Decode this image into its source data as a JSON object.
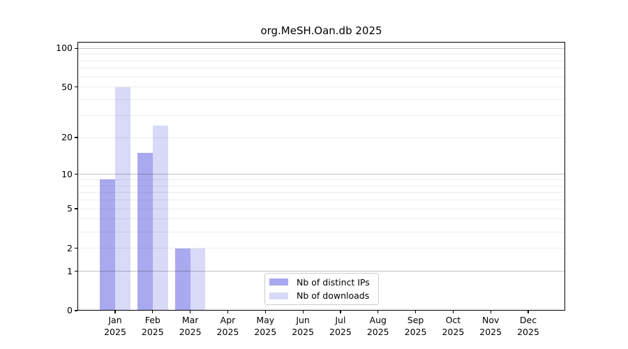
{
  "chart_data": {
    "type": "bar",
    "title": "org.MeSH.Oan.db 2025",
    "categories": [
      "Jan",
      "Feb",
      "Mar",
      "Apr",
      "May",
      "Jun",
      "Jul",
      "Aug",
      "Sep",
      "Oct",
      "Nov",
      "Dec"
    ],
    "year_label": "2025",
    "series": [
      {
        "name": "Nb of distinct IPs",
        "color": "#a9a9ef",
        "values": [
          9,
          15,
          2,
          0,
          0,
          0,
          0,
          0,
          0,
          0,
          0,
          0
        ]
      },
      {
        "name": "Nb of downloads",
        "color": "#d9d9f8",
        "values": [
          50,
          25,
          2,
          0,
          0,
          0,
          0,
          0,
          0,
          0,
          0,
          0
        ]
      }
    ],
    "yscale": "log10(value+1)",
    "ylim": [
      0,
      112
    ],
    "yticks": [
      0,
      1,
      2,
      5,
      10,
      20,
      50,
      100
    ],
    "grid": {
      "major_values": [
        1,
        10,
        100
      ],
      "minor_values": [
        2,
        3,
        4,
        5,
        6,
        7,
        8,
        9,
        20,
        30,
        40,
        50,
        60,
        70,
        80,
        90
      ]
    },
    "legend_position": "lower center"
  }
}
